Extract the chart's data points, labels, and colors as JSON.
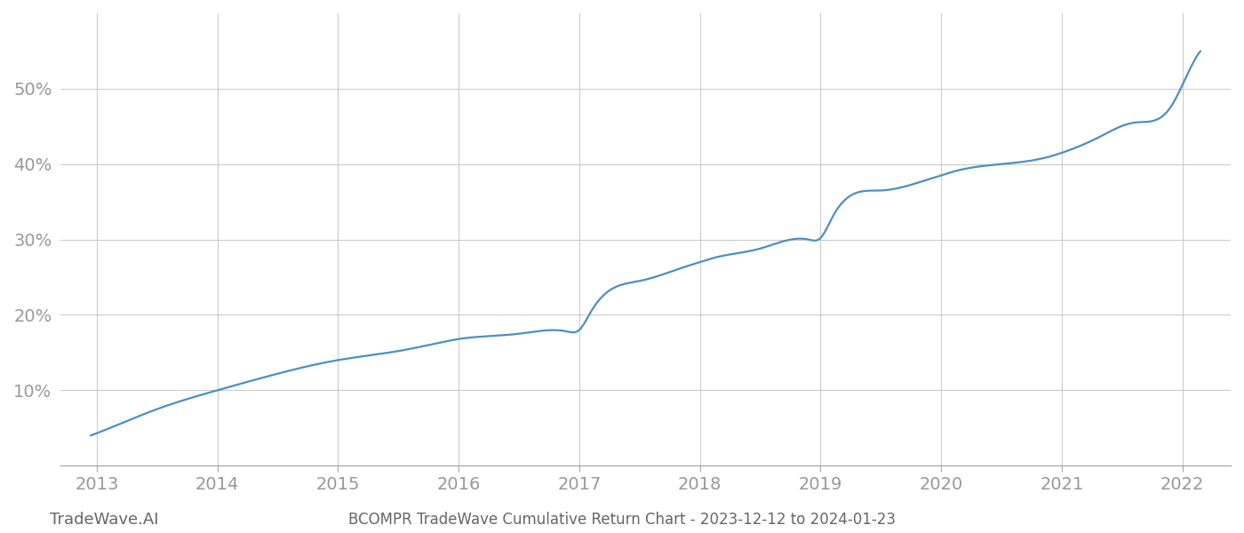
{
  "title": "BCOMPR TradeWave Cumulative Return Chart - 2023-12-12 to 2024-01-23",
  "watermark": "TradeWave.AI",
  "line_color": "#4a90c4",
  "background_color": "#ffffff",
  "grid_color": "#cccccc",
  "x_years": [
    2013,
    2014,
    2015,
    2016,
    2017,
    2018,
    2019,
    2020,
    2021,
    2022
  ],
  "x_ctrl": [
    2012.95,
    2013.08,
    2013.5,
    2014.0,
    2014.5,
    2015.0,
    2015.5,
    2015.9,
    2016.0,
    2016.1,
    2016.5,
    2016.9,
    2017.0,
    2017.1,
    2017.5,
    2017.9,
    2018.0,
    2018.1,
    2018.5,
    2018.9,
    2019.0,
    2019.1,
    2019.5,
    2019.9,
    2020.0,
    2020.1,
    2020.5,
    2020.9,
    2021.0,
    2021.3,
    2021.6,
    2021.9,
    2022.0,
    2022.15
  ],
  "y_ctrl": [
    4.0,
    4.8,
    7.5,
    10.0,
    12.2,
    14.0,
    15.2,
    16.5,
    16.8,
    17.0,
    17.5,
    17.8,
    18.0,
    20.5,
    24.5,
    26.5,
    27.0,
    27.5,
    28.8,
    30.0,
    30.2,
    33.0,
    36.5,
    38.0,
    38.5,
    39.0,
    40.0,
    41.0,
    41.5,
    43.5,
    45.5,
    47.5,
    50.5,
    55.0
  ],
  "yticks": [
    10,
    20,
    30,
    40,
    50
  ],
  "xlim": [
    2012.7,
    2022.4
  ],
  "ylim": [
    0,
    60
  ],
  "tick_label_color": "#999999",
  "title_color": "#666666",
  "watermark_color": "#666666",
  "title_fontsize": 12,
  "watermark_fontsize": 13,
  "tick_fontsize": 14,
  "line_width": 1.6
}
